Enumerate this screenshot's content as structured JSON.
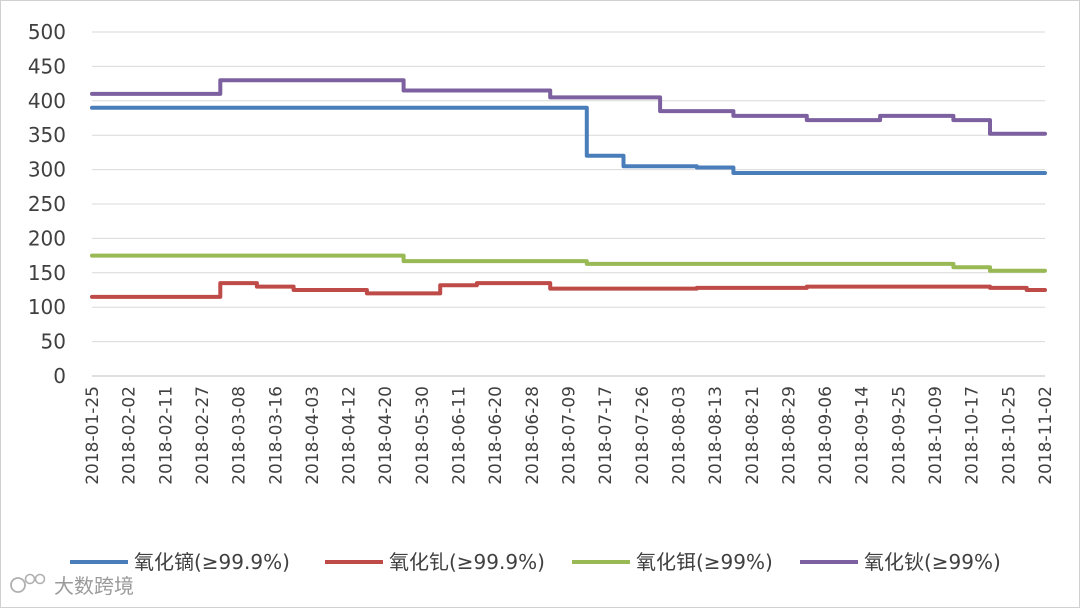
{
  "chart_data": {
    "type": "line",
    "title": "",
    "xlabel": "",
    "ylabel": "",
    "ylim": [
      0,
      500
    ],
    "yticks": [
      0,
      50,
      100,
      150,
      200,
      250,
      300,
      350,
      400,
      450,
      500
    ],
    "grid": "horizontal",
    "legend_position": "bottom",
    "x": [
      "2018-01-25",
      "2018-02-02",
      "2018-02-11",
      "2018-02-27",
      "2018-03-08",
      "2018-03-16",
      "2018-04-03",
      "2018-04-12",
      "2018-04-20",
      "2018-05-30",
      "2018-06-11",
      "2018-06-20",
      "2018-06-28",
      "2018-07-09",
      "2018-07-17",
      "2018-07-26",
      "2018-08-03",
      "2018-08-13",
      "2018-08-21",
      "2018-08-29",
      "2018-09-06",
      "2018-09-14",
      "2018-09-25",
      "2018-10-09",
      "2018-10-17",
      "2018-10-25",
      "2018-11-02"
    ],
    "series": [
      {
        "name": "氧化镝(≥99.9%)",
        "color": "#4a7ebb",
        "values": [
          390,
          390,
          390,
          390,
          390,
          390,
          390,
          390,
          390,
          390,
          390,
          390,
          390,
          390,
          320,
          305,
          305,
          303,
          295,
          295,
          295,
          295,
          295,
          295,
          295,
          295,
          295
        ]
      },
      {
        "name": "氧化钆(≥99.9%)",
        "color": "#be4b48",
        "values": [
          115,
          115,
          115,
          115,
          135,
          130,
          125,
          125,
          120,
          120,
          132,
          135,
          135,
          127,
          127,
          127,
          127,
          128,
          128,
          128,
          130,
          130,
          130,
          130,
          130,
          128,
          125
        ]
      },
      {
        "name": "氧化铒(≥99%)",
        "color": "#98b954",
        "values": [
          175,
          175,
          175,
          175,
          175,
          175,
          175,
          175,
          175,
          167,
          167,
          167,
          167,
          167,
          163,
          163,
          163,
          163,
          163,
          163,
          163,
          163,
          163,
          163,
          158,
          153,
          153
        ]
      },
      {
        "name": "氧化钬(≥99%)",
        "color": "#7d60a0",
        "values": [
          410,
          410,
          410,
          410,
          430,
          430,
          430,
          430,
          430,
          415,
          415,
          415,
          415,
          405,
          405,
          405,
          385,
          385,
          378,
          378,
          372,
          372,
          378,
          378,
          372,
          352,
          352
        ]
      }
    ]
  },
  "watermark": {
    "text": "大数跨境"
  }
}
